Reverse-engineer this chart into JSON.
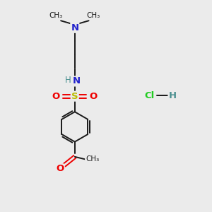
{
  "bg_color": "#ebebeb",
  "bond_color": "#1a1a1a",
  "n_color": "#2222cc",
  "o_color": "#ee0000",
  "s_color": "#bbbb00",
  "h_color": "#4a8f8f",
  "cl_color": "#22cc22",
  "figsize": [
    3.0,
    3.0
  ],
  "dpi": 100,
  "xlim": [
    0,
    10
  ],
  "ylim": [
    0,
    10
  ]
}
